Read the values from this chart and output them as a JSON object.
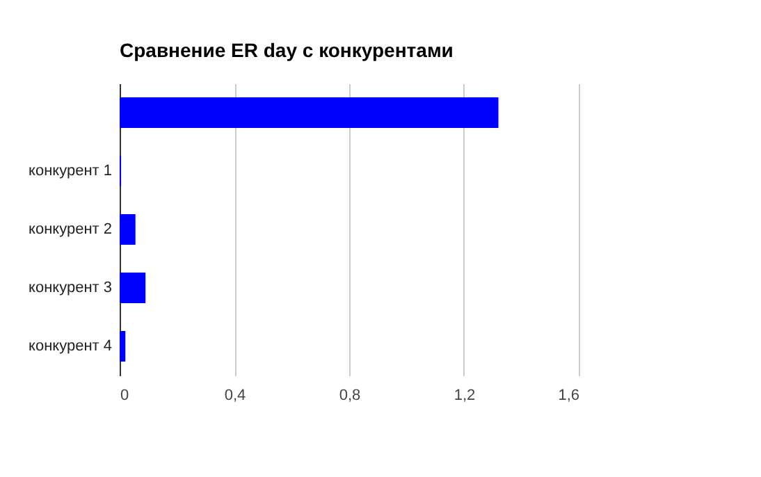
{
  "chart_data": {
    "type": "bar",
    "orientation": "horizontal",
    "title": "Сравнение ER day с конкурентами",
    "categories": [
      null,
      "конкурент 1",
      "конкурент 2",
      "конкурент 3",
      "конкурент 4"
    ],
    "series": [
      {
        "color": "#0000ff",
        "values": [
          1.32,
          0.005,
          0.055,
          0.09,
          0.02
        ]
      }
    ],
    "xlim": [
      0,
      1.6
    ],
    "xticks": [
      0,
      {
        "value": 0.4,
        "label": "0,4"
      },
      {
        "value": 0.8,
        "label": "0,8"
      },
      {
        "value": 1.2,
        "label": "1,2"
      },
      {
        "value": 1.6,
        "label": "1,6"
      }
    ],
    "grid": "x"
  }
}
